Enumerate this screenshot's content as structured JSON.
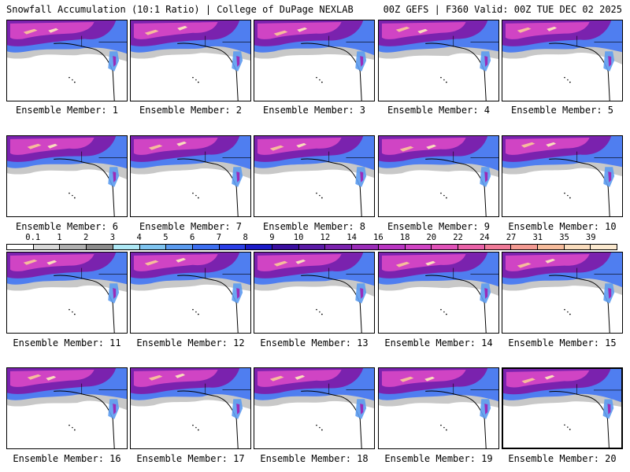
{
  "header": {
    "left": "Snowfall Accumulation (10:1 Ratio) | College of DuPage NEXLAB",
    "right": "00Z GEFS | F360 Valid: 00Z TUE DEC 02 2025"
  },
  "label_prefix": "Ensemble Member: ",
  "members": [
    "1",
    "2",
    "3",
    "4",
    "5",
    "6",
    "7",
    "8",
    "9",
    "10",
    "11",
    "12",
    "13",
    "14",
    "15",
    "16",
    "17",
    "18",
    "19",
    "20"
  ],
  "highlighted_member": "20",
  "colorbar": {
    "labels": [
      "0.1",
      "1",
      "2",
      "3",
      "4",
      "5",
      "6",
      "7",
      "8",
      "9",
      "10",
      "12",
      "14",
      "16",
      "18",
      "20",
      "22",
      "24",
      "27",
      "31",
      "35",
      "39"
    ],
    "colors": [
      "#ffffff",
      "#d9d9d9",
      "#b0b0b0",
      "#8c8c8c",
      "#aee8f5",
      "#7fc4f0",
      "#5b9bef",
      "#3d6ff0",
      "#2a3fe6",
      "#1b1bc8",
      "#3a0fa0",
      "#5a1aa6",
      "#7a22ae",
      "#9a2cb8",
      "#b936c2",
      "#d044c4",
      "#e052b8",
      "#ea62a8",
      "#f07a98",
      "#f39a92",
      "#f6bc9c",
      "#f9dcbd",
      "#fbe9cf"
    ]
  }
}
